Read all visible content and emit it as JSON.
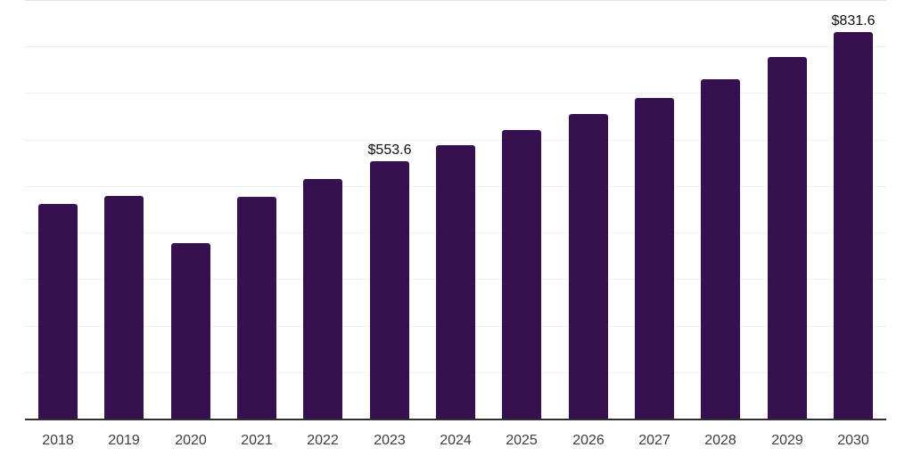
{
  "chart_data": {
    "type": "bar",
    "title": "",
    "xlabel": "",
    "ylabel": "",
    "categories": [
      "2018",
      "2019",
      "2020",
      "2021",
      "2022",
      "2023",
      "2024",
      "2025",
      "2026",
      "2027",
      "2028",
      "2029",
      "2030"
    ],
    "values": [
      461.9,
      479.0,
      377.5,
      477.0,
      515.4,
      553.6,
      588.2,
      620.7,
      655.2,
      689.7,
      729.9,
      777.8,
      831.6
    ],
    "data_labels": [
      "",
      "",
      "",
      "",
      "",
      "$553.6",
      "",
      "",
      "",
      "",
      "",
      "",
      "$831.6"
    ],
    "ylim": [
      0,
      900
    ],
    "gridline_interval": 100,
    "grid": true,
    "legend": false,
    "bar_color": "#371050",
    "axis_color": "#2f2f2f",
    "gridline_color": "#f1f1f1",
    "top_border_color": "#e3e3e3",
    "label_color": "#0d0d0d",
    "tick_label_color": "#3d3d3d"
  }
}
